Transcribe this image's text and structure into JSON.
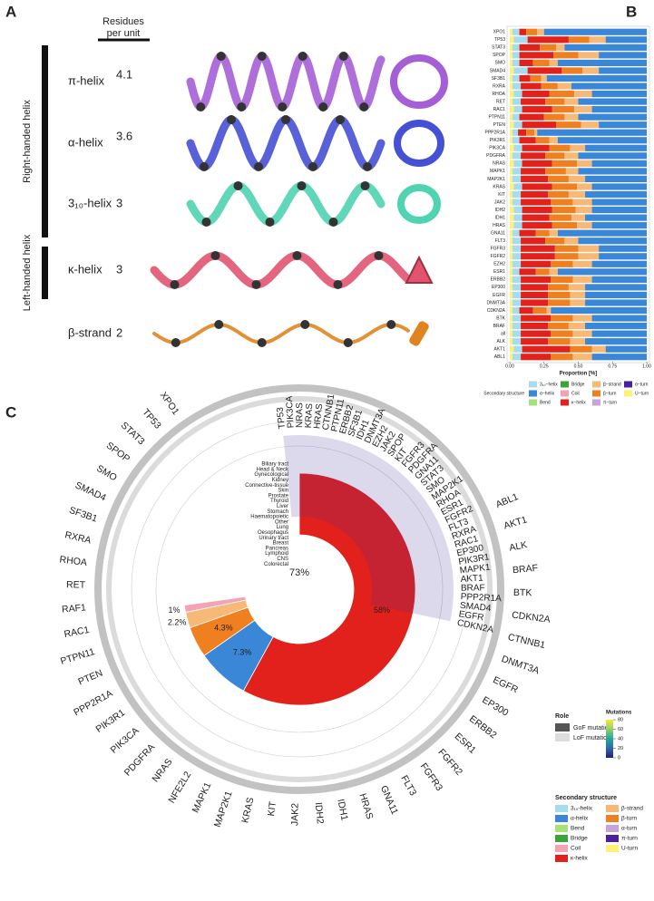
{
  "panel_a": {
    "letter": "A",
    "column_header": "Residues per unit",
    "groups": [
      "Right-handed helix",
      "Left-handed helix"
    ],
    "rows": [
      {
        "label": "π-helix",
        "residues": "4.1"
      },
      {
        "label": "α-helix",
        "residues": "3.6"
      },
      {
        "label": "3₁₀-helix",
        "residues": "3"
      },
      {
        "label": "κ-helix",
        "residues": "3"
      },
      {
        "label": "β-strand",
        "residues": "2"
      }
    ]
  },
  "chart_data": [
    {
      "type": "stacked-barh",
      "letter": "B",
      "categories": [
        "XPO1",
        "TP53",
        "STAT3",
        "SPOP",
        "SMO",
        "SMAD4",
        "SF3B1",
        "RXRA",
        "RHOA",
        "RET",
        "RAC1",
        "PTPN11",
        "PTEN",
        "PPP2R1A",
        "PIK3R1",
        "PIK3CA",
        "PDGFRA",
        "NRAS",
        "MAPK1",
        "MAP2K1",
        "KRAS",
        "KIT",
        "JAK2",
        "IDH2",
        "IDH1",
        "HRAS",
        "GNA11",
        "FLT3",
        "FGFR3",
        "FGFR2",
        "EZH2",
        "ESR1",
        "ERBB2",
        "EP300",
        "EGFR",
        "DNMT3A",
        "CDKN2A",
        "BTK",
        "BRAF",
        "all",
        "ALK",
        "AKT1",
        "ABL1"
      ],
      "series": [
        {
          "name": "U−turn",
          "color": "#fff176",
          "values": [
            0.02,
            0.03,
            0.02,
            0.02,
            0.02,
            0.03,
            0.02,
            0.02,
            0.03,
            0.02,
            0.03,
            0.02,
            0.03,
            0.02,
            0.02,
            0.03,
            0.02,
            0.03,
            0.02,
            0.02,
            0.03,
            0.02,
            0.02,
            0.03,
            0.03,
            0.03,
            0.02,
            0.02,
            0.02,
            0.02,
            0.02,
            0.02,
            0.02,
            0.02,
            0.02,
            0.02,
            0.02,
            0.02,
            0.02,
            0.02,
            0.02,
            0.03,
            0.02
          ]
        },
        {
          "name": "3₁₀−helix",
          "color": "#a6dcef",
          "values": [
            0.05,
            0.1,
            0.05,
            0.05,
            0.05,
            0.1,
            0.05,
            0.06,
            0.06,
            0.06,
            0.06,
            0.05,
            0.06,
            0.04,
            0.05,
            0.06,
            0.06,
            0.06,
            0.06,
            0.06,
            0.06,
            0.06,
            0.06,
            0.06,
            0.06,
            0.06,
            0.05,
            0.06,
            0.06,
            0.06,
            0.06,
            0.05,
            0.06,
            0.06,
            0.06,
            0.06,
            0.05,
            0.06,
            0.06,
            0.06,
            0.06,
            0.06,
            0.06
          ]
        },
        {
          "name": "κ−helix",
          "color": "#e3211c",
          "values": [
            0.05,
            0.3,
            0.15,
            0.25,
            0.1,
            0.25,
            0.08,
            0.15,
            0.2,
            0.18,
            0.22,
            0.18,
            0.25,
            0.06,
            0.12,
            0.2,
            0.18,
            0.22,
            0.18,
            0.2,
            0.22,
            0.2,
            0.22,
            0.22,
            0.2,
            0.22,
            0.12,
            0.18,
            0.25,
            0.25,
            0.22,
            0.12,
            0.22,
            0.2,
            0.2,
            0.2,
            0.1,
            0.22,
            0.2,
            0.22,
            0.2,
            0.35,
            0.22
          ]
        },
        {
          "name": "β−turn",
          "color": "#f07f1f",
          "values": [
            0.08,
            0.15,
            0.12,
            0.18,
            0.12,
            0.15,
            0.08,
            0.12,
            0.18,
            0.14,
            0.16,
            0.15,
            0.18,
            0.06,
            0.1,
            0.15,
            0.14,
            0.18,
            0.15,
            0.15,
            0.18,
            0.15,
            0.16,
            0.17,
            0.16,
            0.18,
            0.1,
            0.14,
            0.17,
            0.17,
            0.16,
            0.1,
            0.16,
            0.15,
            0.16,
            0.16,
            0.1,
            0.16,
            0.15,
            0.16,
            0.16,
            0.16,
            0.16
          ]
        },
        {
          "name": "β−strand",
          "color": "#f7b977",
          "values": [
            0.05,
            0.12,
            0.06,
            0.15,
            0.06,
            0.12,
            0.04,
            0.1,
            0.13,
            0.1,
            0.13,
            0.1,
            0.13,
            0.02,
            0.06,
            0.11,
            0.1,
            0.11,
            0.09,
            0.12,
            0.11,
            0.12,
            0.14,
            0.12,
            0.1,
            0.11,
            0.06,
            0.1,
            0.15,
            0.15,
            0.14,
            0.06,
            0.14,
            0.12,
            0.11,
            0.11,
            0.03,
            0.14,
            0.12,
            0.14,
            0.11,
            0.1,
            0.14
          ]
        },
        {
          "name": "α−helix",
          "color": "#3a87d8",
          "values": [
            0.75,
            0.3,
            0.6,
            0.35,
            0.65,
            0.35,
            0.73,
            0.55,
            0.4,
            0.5,
            0.4,
            0.5,
            0.35,
            0.8,
            0.65,
            0.45,
            0.5,
            0.4,
            0.5,
            0.45,
            0.4,
            0.45,
            0.4,
            0.4,
            0.45,
            0.4,
            0.65,
            0.5,
            0.35,
            0.35,
            0.4,
            0.65,
            0.4,
            0.45,
            0.45,
            0.45,
            0.7,
            0.4,
            0.45,
            0.4,
            0.45,
            0.3,
            0.4
          ]
        }
      ],
      "xlabel": "Proportion [%]",
      "xlim": [
        0,
        1
      ],
      "xticks": [
        {
          "value": 0,
          "label": "0.00"
        },
        {
          "value": 0.25,
          "label": "0.25"
        },
        {
          "value": 0.5,
          "label": "0.50"
        },
        {
          "value": 0.75,
          "label": "0.75"
        },
        {
          "value": 1,
          "label": "1.00"
        }
      ],
      "legend_title": "Secondary structure",
      "legend": [
        {
          "name": "3₁₀−helix",
          "color": "#a6dcef"
        },
        {
          "name": "Bridge",
          "color": "#3aa33a"
        },
        {
          "name": "β−strand",
          "color": "#f7b977"
        },
        {
          "name": "α−turn",
          "color": "#4b1fa0"
        },
        {
          "name": "α−helix",
          "color": "#3a87d8"
        },
        {
          "name": "Coil",
          "color": "#f4a3b4"
        },
        {
          "name": "β−turn",
          "color": "#f07f1f"
        },
        {
          "name": "U−turn",
          "color": "#fff176"
        },
        {
          "name": "Bend",
          "color": "#a8e07a"
        },
        {
          "name": "κ−helix",
          "color": "#e3211c"
        },
        {
          "name": "π−turn",
          "color": "#c7a3d8"
        }
      ]
    },
    {
      "type": "donut",
      "letter": "C",
      "center_label": "73%",
      "values": [
        58,
        7.3,
        4.3,
        2.2,
        1
      ],
      "value_labels": [
        "58%",
        "7.3%",
        "4.3%",
        "2.2%",
        "1%"
      ],
      "colors": [
        "#e3211c",
        "#3a87d8",
        "#f07f1f",
        "#f7b977",
        "#f4a3b4"
      ],
      "genes": [
        "XPO1",
        "TP53",
        "STAT3",
        "SPOP",
        "SMO",
        "SMAD4",
        "SF3B1",
        "RXRA",
        "RHOA",
        "RET",
        "RAF1",
        "RAC1",
        "PTPN11",
        "PTEN",
        "PPP2R1A",
        "PIK3R1",
        "PIK3CA",
        "PDGFRA",
        "NRAS",
        "NFE2L2",
        "MAPK1",
        "MAP2K1",
        "KRAS",
        "KIT",
        "JAK2",
        "IDH2",
        "IDH1",
        "HRAS",
        "GNA11",
        "FLT3",
        "FGFR3",
        "FGFR2",
        "ESR1",
        "ERBB2",
        "EP300",
        "EGFR",
        "DNMT3A",
        "CTNNB1",
        "CDKN2A",
        "BTK",
        "BRAF",
        "ALK",
        "AKT1",
        "ABL1"
      ],
      "heatmap_genes": [
        "TP53",
        "PIK3CA",
        "NRAS",
        "KRAS",
        "HRAS",
        "CTNNB1",
        "PTPN11",
        "ERBB2",
        "SF3B1",
        "IDH1",
        "DNMT3A",
        "EZH2",
        "JAK2",
        "SPOP",
        "KIT",
        "FGFR3",
        "PDGFRA",
        "GNA11",
        "STAT3",
        "SMO",
        "MAP2K1",
        "RHOA",
        "ESR1",
        "FGFR2",
        "FLT3",
        "RXRA",
        "RAC1",
        "EP300",
        "PIK3R1",
        "MAPK1",
        "AKT1",
        "BRAF",
        "PPP2R1A",
        "SMAD4",
        "EGFR",
        "CDKN2A"
      ],
      "cancer_types": [
        "Biliary tract",
        "Head & Neck",
        "Gynecological",
        "Kidney",
        "Connective-tissue",
        "Skin",
        "Prostate",
        "Thyroid",
        "Liver",
        "Stomach",
        "Haematopoietic",
        "Other",
        "Lung",
        "Oesophagus",
        "Urinary tract",
        "Breast",
        "Pancreas",
        "Lymphoid",
        "CNS",
        "Colorectal"
      ],
      "role_title": "Role",
      "roles": [
        {
          "name": "GoF mutation",
          "color": "#555555"
        },
        {
          "name": "LoF mutation",
          "color": "#dddddd"
        }
      ],
      "mutations_title": "Mutations",
      "mutation_ticks": [
        0,
        20,
        40,
        60,
        80
      ],
      "mutation_colors": [
        "#2a1a7a",
        "#2c6aa8",
        "#2aa59a",
        "#8fd16a",
        "#f6ea3a"
      ],
      "legend_title": "Secondary structure",
      "legend": [
        {
          "name": "3₁₀-helix",
          "color": "#a6dcef"
        },
        {
          "name": "β-strand",
          "color": "#f7b977"
        },
        {
          "name": "α-helix",
          "color": "#3a87d8"
        },
        {
          "name": "β-turn",
          "color": "#f07f1f"
        },
        {
          "name": "Bend",
          "color": "#a8e07a"
        },
        {
          "name": "α-turn",
          "color": "#c7a3d8"
        },
        {
          "name": "Bridge",
          "color": "#3aa33a"
        },
        {
          "name": "π-turn",
          "color": "#4b1fa0"
        },
        {
          "name": "Coil",
          "color": "#f4a3b4"
        },
        {
          "name": "U-turn",
          "color": "#fff176"
        },
        {
          "name": "κ-helix",
          "color": "#e3211c"
        }
      ]
    }
  ]
}
